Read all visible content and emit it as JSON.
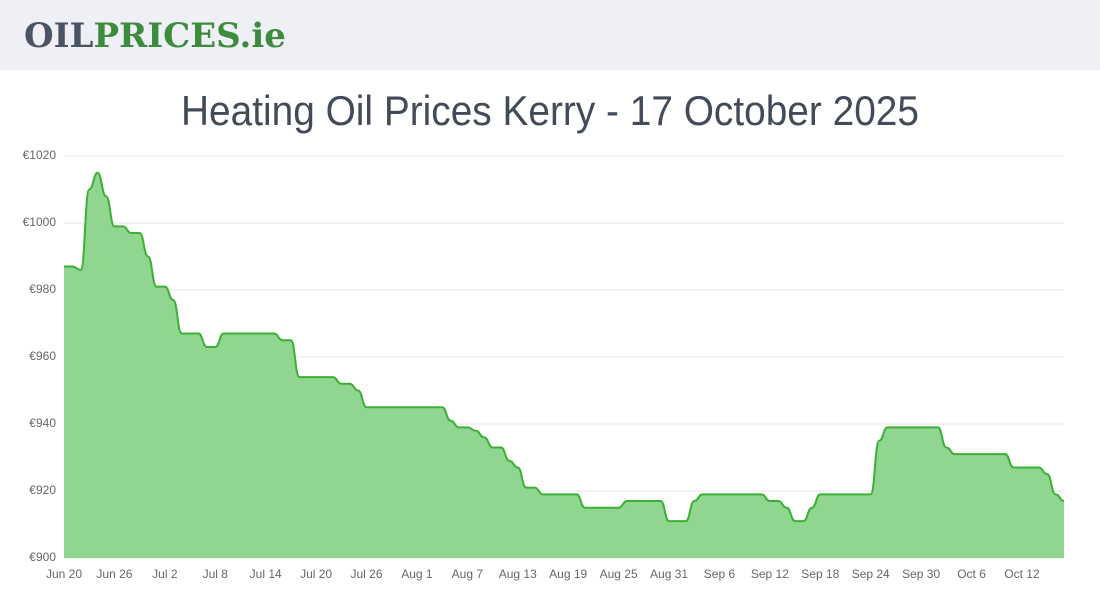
{
  "header": {
    "logo_dark": "OIL",
    "logo_green": "PRICES.ie"
  },
  "chart_data": {
    "type": "area",
    "title": "Heating Oil Prices Kerry - 17 October 2025",
    "categories": [
      "Jun 20",
      null,
      null,
      null,
      null,
      null,
      "Jun 26",
      null,
      null,
      null,
      null,
      null,
      "Jul 2",
      null,
      null,
      null,
      null,
      null,
      "Jul 8",
      null,
      null,
      null,
      null,
      null,
      "Jul 14",
      null,
      null,
      null,
      null,
      null,
      "Jul 20",
      null,
      null,
      null,
      null,
      null,
      "Jul 26",
      null,
      null,
      null,
      null,
      null,
      "Aug 1",
      null,
      null,
      null,
      null,
      null,
      "Aug 7",
      null,
      null,
      null,
      null,
      null,
      "Aug 13",
      null,
      null,
      null,
      null,
      null,
      "Aug 19",
      null,
      null,
      null,
      null,
      null,
      "Aug 25",
      null,
      null,
      null,
      null,
      null,
      "Aug 31",
      null,
      null,
      null,
      null,
      null,
      "Sep 6",
      null,
      null,
      null,
      null,
      null,
      "Sep 12",
      null,
      null,
      null,
      null,
      null,
      "Sep 18",
      null,
      null,
      null,
      null,
      null,
      "Sep 24",
      null,
      null,
      null,
      null,
      null,
      "Sep 30",
      null,
      null,
      null,
      null,
      null,
      "Oct 6",
      null,
      null,
      null,
      null,
      null,
      "Oct 12",
      null,
      null,
      null,
      null,
      null
    ],
    "values": [
      987,
      987,
      986,
      1010,
      1015,
      1008,
      999,
      999,
      997,
      997,
      990,
      981,
      981,
      977,
      967,
      967,
      967,
      963,
      963,
      967,
      967,
      967,
      967,
      967,
      967,
      967,
      965,
      965,
      954,
      954,
      954,
      954,
      954,
      952,
      952,
      950,
      945,
      945,
      945,
      945,
      945,
      945,
      945,
      945,
      945,
      945,
      941,
      939,
      939,
      938,
      936,
      933,
      933,
      929,
      927,
      921,
      921,
      919,
      919,
      919,
      919,
      919,
      915,
      915,
      915,
      915,
      915,
      917,
      917,
      917,
      917,
      917,
      911,
      911,
      911,
      917,
      919,
      919,
      919,
      919,
      919,
      919,
      919,
      919,
      917,
      917,
      915,
      911,
      911,
      915,
      919,
      919,
      919,
      919,
      919,
      919,
      919,
      935,
      939,
      939,
      939,
      939,
      939,
      939,
      939,
      933,
      931,
      931,
      931,
      931,
      931,
      931,
      931,
      927,
      927,
      927,
      927,
      925,
      919,
      917
    ],
    "color": "#3cb034",
    "fill": "#90d690",
    "ylim": [
      900,
      1020
    ],
    "yticks": [
      {
        "value": 900,
        "label": "€900"
      },
      {
        "value": 920,
        "label": "€920"
      },
      {
        "value": 940,
        "label": "€940"
      },
      {
        "value": 960,
        "label": "€960"
      },
      {
        "value": 980,
        "label": "€980"
      },
      {
        "value": 1000,
        "label": "€1000"
      },
      {
        "value": 1020,
        "label": "€1020"
      }
    ],
    "grid": true
  }
}
